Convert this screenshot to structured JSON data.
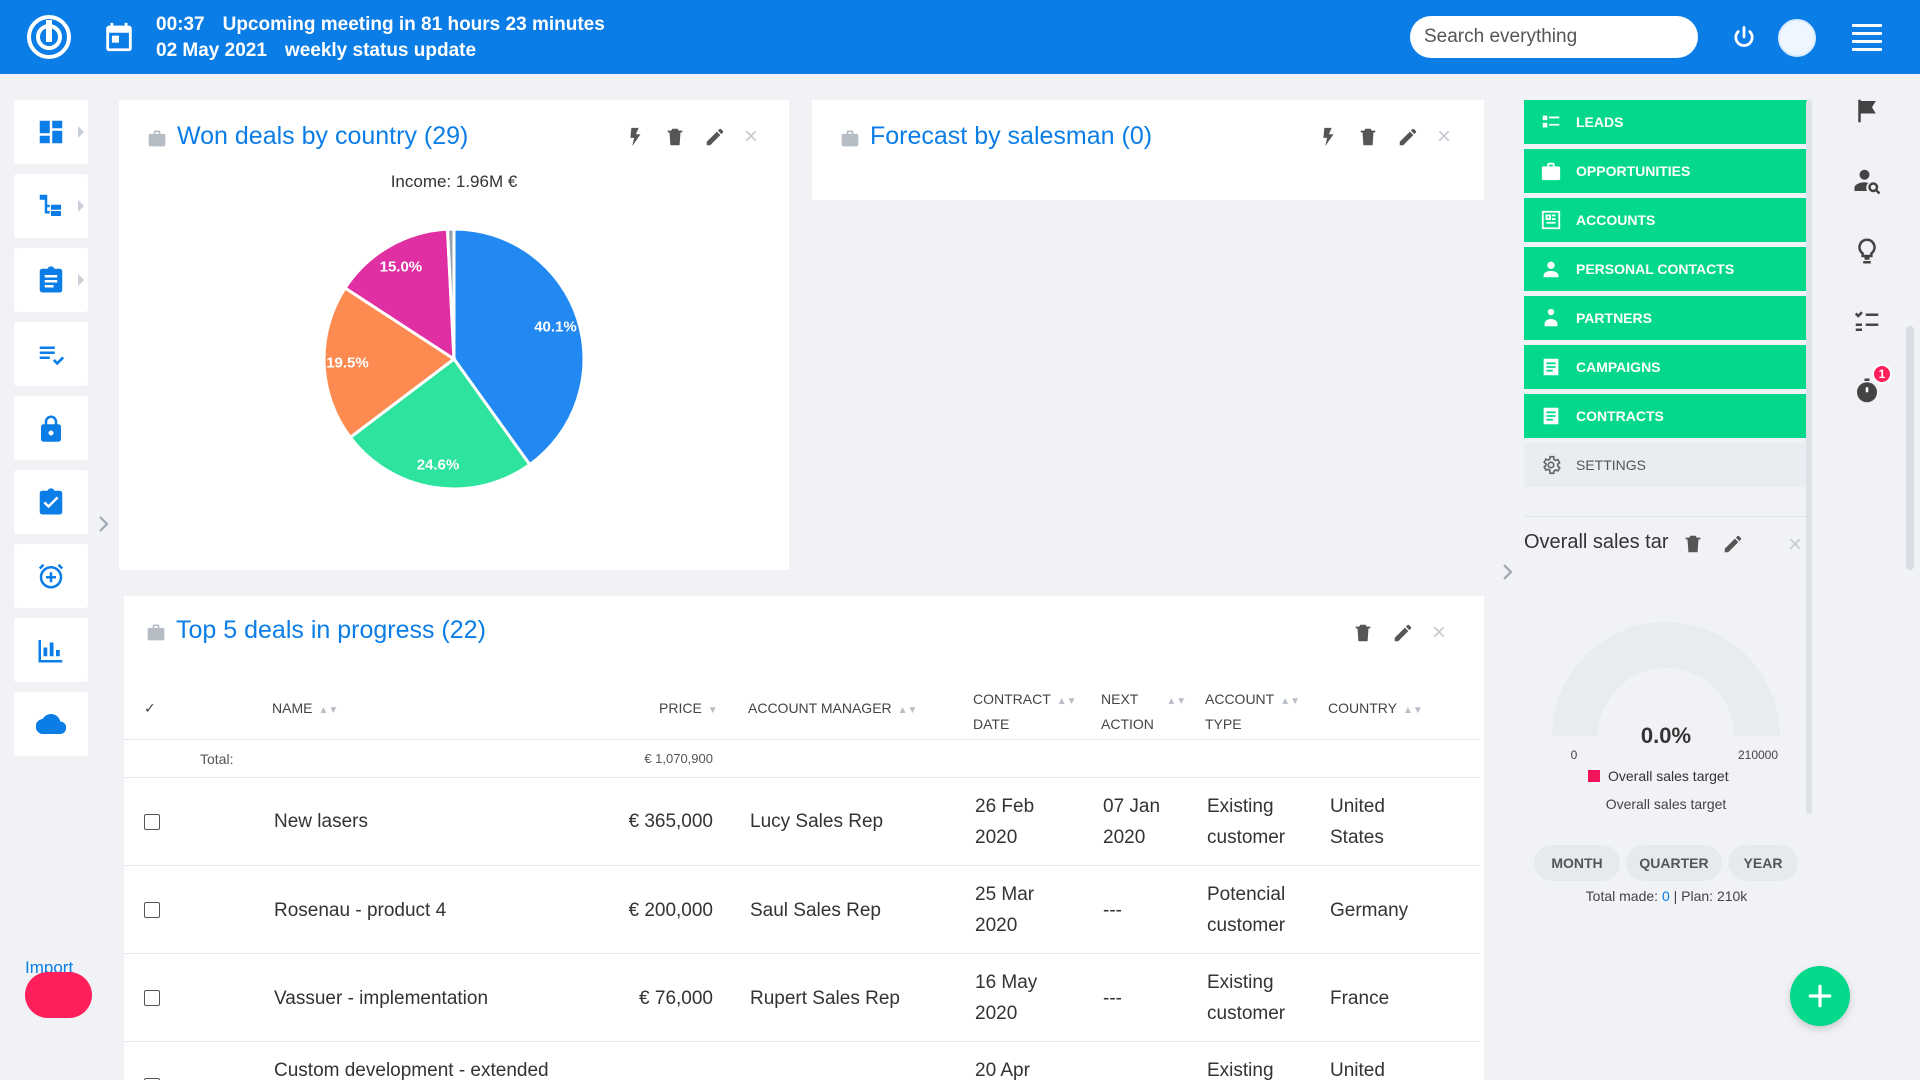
{
  "topbar": {
    "time": "00:37",
    "meeting": "Upcoming meeting in 81 hours 23 minutes",
    "date": "02 May 2021",
    "meeting_title": "weekly status update",
    "search_placeholder": "Search everything"
  },
  "left_sidebar": {
    "items": [
      {
        "icon": "dashboard-icon"
      },
      {
        "icon": "hierarchy-icon"
      },
      {
        "icon": "clipboard-icon"
      },
      {
        "icon": "checklist-icon"
      },
      {
        "icon": "lock-icon"
      },
      {
        "icon": "clipboard-check-icon"
      },
      {
        "icon": "alarm-add-icon"
      },
      {
        "icon": "bar-chart-icon"
      },
      {
        "icon": "cloud-icon"
      }
    ],
    "import_label": "Import"
  },
  "won_deals": {
    "title": "Won deals by country (29)",
    "income": "Income: 1.96M €",
    "chart_data": {
      "type": "pie",
      "values": [
        40.1,
        24.6,
        19.5,
        15.0,
        0.8
      ],
      "labels": [
        "40.1%",
        "24.6%",
        "19.5%",
        "15.0%",
        ""
      ],
      "colors": [
        "#2288f2",
        "#2ee39d",
        "#fd8a50",
        "#e02fa3",
        "#9aa3ad"
      ],
      "title": "Income: 1.96M €"
    }
  },
  "forecast": {
    "title": "Forecast by salesman (0)"
  },
  "top_deals": {
    "title": "Top 5 deals in progress (22)",
    "columns": {
      "check": "✓",
      "name": "NAME",
      "price": "PRICE",
      "manager": "ACCOUNT MANAGER",
      "contract_1": "CONTRACT",
      "contract_2": "DATE",
      "next_1": "NEXT",
      "next_2": "ACTION",
      "type_1": "ACCOUNT",
      "type_2": "TYPE",
      "country": "COUNTRY"
    },
    "total_label": "Total:",
    "total_value": "€ 1,070,900",
    "rows": [
      {
        "name": "New lasers",
        "price": "€ 365,000",
        "manager": "Lucy Sales Rep",
        "date_1": "26 Feb",
        "date_2": "2020",
        "next_1": "07 Jan",
        "next_2": "2020",
        "type_1": "Existing",
        "type_2": "customer",
        "country_1": "United",
        "country_2": "States"
      },
      {
        "name": "Rosenau - product 4",
        "price": "€ 200,000",
        "manager": "Saul Sales Rep",
        "date_1": "25 Mar",
        "date_2": "2020",
        "next_1": "---",
        "next_2": "",
        "type_1": "Potencial",
        "type_2": "customer",
        "country_1": "Germany",
        "country_2": ""
      },
      {
        "name": "Vassuer - implementation",
        "price": "€ 76,000",
        "manager": "Rupert Sales Rep",
        "date_1": "16 May",
        "date_2": "2020",
        "next_1": "---",
        "next_2": "",
        "type_1": "Existing",
        "type_2": "customer",
        "country_1": "France",
        "country_2": ""
      },
      {
        "name": "Custom development - extended",
        "price": "",
        "manager": "",
        "date_1": "20 Apr",
        "date_2": "",
        "next_1": "",
        "next_2": "",
        "type_1": "Existing",
        "type_2": "",
        "country_1": "United",
        "country_2": ""
      }
    ]
  },
  "right_menu": {
    "items": [
      "LEADS",
      "OPPORTUNITIES",
      "ACCOUNTS",
      "PERSONAL CONTACTS",
      "PARTNERS",
      "CAMPAIGNS",
      "CONTRACTS"
    ],
    "settings": "SETTINGS"
  },
  "sales_target": {
    "title": "Overall sales tar",
    "percent": "0.0%",
    "min": "0",
    "max": "210000",
    "legend": "Overall sales target",
    "caption": "Overall sales target",
    "chart_data": {
      "type": "gauge",
      "value": 0,
      "min": 0,
      "max": 210000,
      "colors": {
        "track": "#e9ecef",
        "fill": "#f0145a"
      }
    },
    "periods": [
      "MONTH",
      "QUARTER",
      "YEAR"
    ],
    "total_made_label": "Total made: ",
    "total_made_value": "0",
    "plan_text": " | Plan: 210k"
  },
  "far_right": {
    "badge_count": "1"
  },
  "colors": {
    "primary": "#0b7de7",
    "green": "#04d98b",
    "pink": "#ff1f5a"
  }
}
